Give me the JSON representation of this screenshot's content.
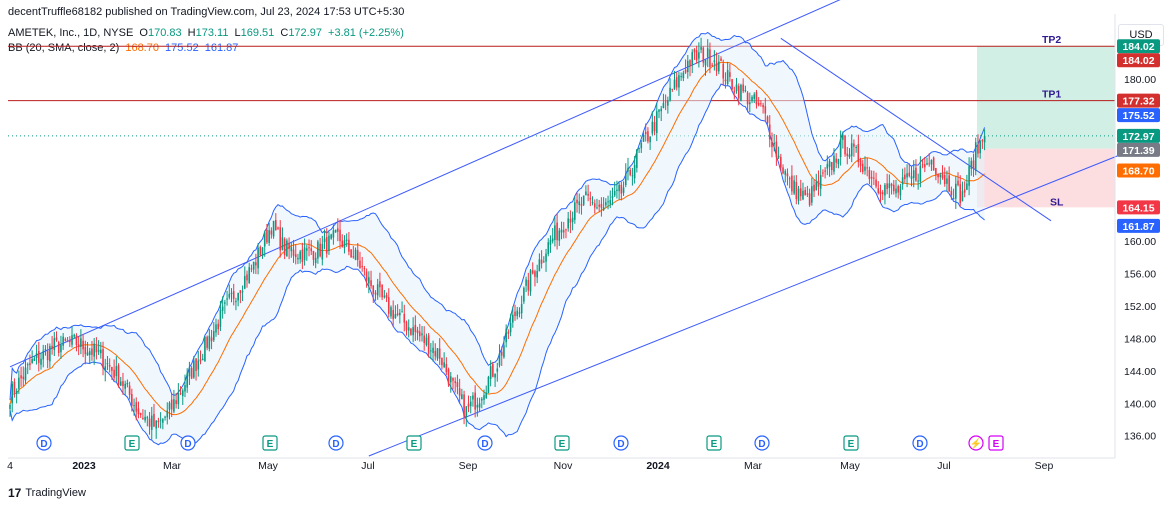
{
  "header": {
    "publisher": "decentTruffle68182 published on TradingView.com, Jul 23, 2024 17:53 UTC+5:30"
  },
  "legend": {
    "symbol": "AMETEK, Inc., 1D, NYSE",
    "o_label": "O",
    "o": "170.83",
    "h_label": "H",
    "h": "173.11",
    "l_label": "L",
    "l": "169.51",
    "c_label": "C",
    "c": "172.97",
    "change": "+3.81 (+2.25%)",
    "bb_label": "BB (20, SMA, close, 2)",
    "bb_basis": "168.70",
    "bb_upper": "175.52",
    "bb_lower": "161.87"
  },
  "currency_button": "USD",
  "footer": {
    "logo": "17",
    "brand": "TradingView"
  },
  "colors": {
    "up": "#089981",
    "down": "#F23645",
    "basis": "#FF6D00",
    "band": "#2962FF",
    "band_fill": "#E3F2FD",
    "hline": "#B71C1C",
    "target_fill": "#D1EFE4",
    "stop_fill": "#FCDDE0",
    "channel": "#3D5AFE",
    "event_dividend": "#2962FF",
    "event_earnings": "#089981"
  },
  "chart_data": {
    "type": "candlestick",
    "title": "AMETEK, Inc., 1D, NYSE",
    "ylim": [
      133.5,
      187.5
    ],
    "y_ticks": [
      "136.00",
      "140.00",
      "144.00",
      "148.00",
      "152.00",
      "156.00",
      "160.00",
      "180.00"
    ],
    "x_ticks": [
      "4",
      "2023",
      "Mar",
      "May",
      "Jul",
      "Sep",
      "Nov",
      "2024",
      "Mar",
      "May",
      "Jul",
      "Sep"
    ],
    "horizontal_lines": [
      {
        "label": "TP2",
        "value": 184.02
      },
      {
        "label": "TP1",
        "value": 177.32
      }
    ],
    "price_tags": [
      {
        "value": 184.02,
        "text": "184.02",
        "color": "#089981"
      },
      {
        "value": 184.02,
        "text": "184.02",
        "color": "#D32F2F"
      },
      {
        "value": 177.32,
        "text": "177.32",
        "color": "#D32F2F"
      },
      {
        "value": 175.52,
        "text": "175.52",
        "color": "#2962FF"
      },
      {
        "value": 172.97,
        "text": "172.97",
        "color": "#089981"
      },
      {
        "value": 171.39,
        "text": "171.39",
        "color": "#787B86"
      },
      {
        "value": 168.7,
        "text": "168.70",
        "color": "#FF6D00"
      },
      {
        "value": 164.15,
        "text": "164.15",
        "color": "#F23645"
      },
      {
        "value": 161.87,
        "text": "161.87",
        "color": "#2962FF"
      }
    ],
    "position": {
      "entry": 171.39,
      "target": 184.02,
      "stop": 164.15,
      "stop_label": "SL"
    },
    "events": [
      {
        "type": "D",
        "slot": 0
      },
      {
        "type": "E",
        "slot": 1
      },
      {
        "type": "D",
        "slot": 2
      },
      {
        "type": "E",
        "slot": 3
      },
      {
        "type": "D",
        "slot": 4
      },
      {
        "type": "E",
        "slot": 5
      },
      {
        "type": "D",
        "slot": 6
      },
      {
        "type": "E",
        "slot": 7
      },
      {
        "type": "D",
        "slot": 8
      },
      {
        "type": "E",
        "slot": 9
      },
      {
        "type": "D",
        "slot": 10
      },
      {
        "type": "E",
        "slot": 11
      },
      {
        "type": "D",
        "slot": 12
      },
      {
        "type": "S",
        "slot": 13
      },
      {
        "type": "E",
        "slot": 14
      }
    ],
    "guide_points": [
      [
        0,
        141
      ],
      [
        10,
        145
      ],
      [
        20,
        147
      ],
      [
        30,
        147.5
      ],
      [
        40,
        146
      ],
      [
        50,
        143
      ],
      [
        58,
        139
      ],
      [
        66,
        137
      ],
      [
        72,
        139
      ],
      [
        80,
        143
      ],
      [
        90,
        148
      ],
      [
        100,
        153
      ],
      [
        110,
        157
      ],
      [
        118,
        162
      ],
      [
        124,
        159
      ],
      [
        132,
        158.5
      ],
      [
        140,
        159
      ],
      [
        148,
        160.5
      ],
      [
        156,
        158
      ],
      [
        162,
        155
      ],
      [
        170,
        152
      ],
      [
        178,
        150
      ],
      [
        186,
        148
      ],
      [
        194,
        146
      ],
      [
        200,
        142
      ],
      [
        206,
        139
      ],
      [
        212,
        141
      ],
      [
        220,
        145
      ],
      [
        228,
        151
      ],
      [
        236,
        156
      ],
      [
        244,
        160
      ],
      [
        252,
        163
      ],
      [
        260,
        165
      ],
      [
        268,
        164
      ],
      [
        276,
        166
      ],
      [
        284,
        171
      ],
      [
        292,
        175
      ],
      [
        300,
        179
      ],
      [
        306,
        182
      ],
      [
        312,
        183
      ],
      [
        318,
        182.5
      ],
      [
        324,
        180
      ],
      [
        332,
        178
      ],
      [
        340,
        176
      ],
      [
        346,
        171
      ],
      [
        352,
        167
      ],
      [
        360,
        165
      ],
      [
        368,
        168
      ],
      [
        376,
        172
      ],
      [
        384,
        170
      ],
      [
        392,
        167
      ],
      [
        400,
        166
      ],
      [
        408,
        168
      ],
      [
        416,
        170
      ],
      [
        424,
        167
      ],
      [
        430,
        165.5
      ],
      [
        436,
        171
      ],
      [
        440,
        172.97
      ]
    ]
  }
}
